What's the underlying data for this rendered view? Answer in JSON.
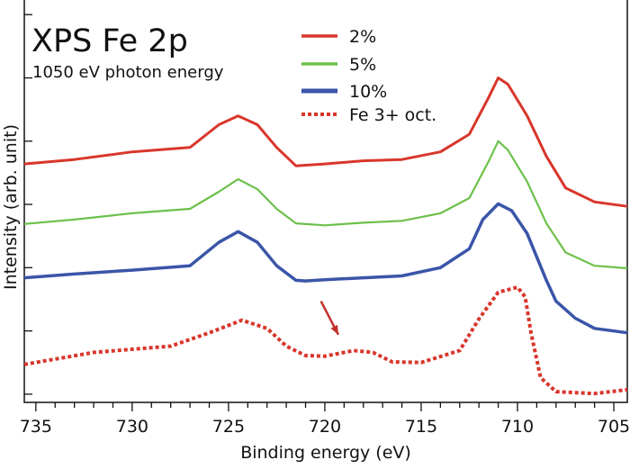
{
  "chart_data": {
    "type": "line",
    "title": "XPS Fe 2p",
    "subtitle": "1050 eV photon energy",
    "xlabel": "Binding energy (eV)",
    "ylabel": "Intensity (arb. unit)",
    "xlim": [
      735.6,
      704.3
    ],
    "x_reversed": true,
    "ylim": [
      -0.13,
      6.26
    ],
    "x_ticks": [
      735,
      730,
      725,
      720,
      715,
      710,
      705
    ],
    "x_tick_labels": [
      "735",
      "730",
      "725",
      "720",
      "715",
      "710",
      "705"
    ],
    "y_ticks": [
      0,
      1,
      2,
      3,
      4,
      5,
      6
    ],
    "y_tick_labels_shown": false,
    "grid": false,
    "legend_placement": "top-center",
    "series": [
      {
        "name": "2%",
        "color": "#d9362b",
        "style": "solid",
        "x": [
          735.6,
          733,
          730,
          727,
          725.5,
          724.5,
          723.5,
          722.5,
          721.5,
          720,
          718,
          716,
          714,
          712.5,
          711.5,
          711,
          710.5,
          709.5,
          708.5,
          707.5,
          706,
          704.3
        ],
        "y": [
          3.64,
          3.71,
          3.83,
          3.9,
          4.26,
          4.4,
          4.26,
          3.9,
          3.61,
          3.64,
          3.69,
          3.71,
          3.83,
          4.11,
          4.69,
          5.0,
          4.9,
          4.4,
          3.76,
          3.26,
          3.04,
          2.97
        ]
      },
      {
        "name": "5%",
        "color": "#6cc04a",
        "style": "solid",
        "x": [
          735.6,
          733,
          730,
          727,
          725.5,
          724.5,
          723.5,
          722.5,
          721.5,
          720,
          718,
          716,
          714,
          712.5,
          711.5,
          711,
          710.5,
          709.5,
          708.5,
          707.5,
          706,
          704.3
        ],
        "y": [
          2.69,
          2.76,
          2.86,
          2.93,
          3.2,
          3.4,
          3.24,
          2.93,
          2.7,
          2.67,
          2.71,
          2.74,
          2.86,
          3.1,
          3.68,
          4.0,
          3.86,
          3.36,
          2.7,
          2.24,
          2.03,
          1.99
        ]
      },
      {
        "name": "10%",
        "color": "#3a55a8",
        "style": "solid",
        "x": [
          735.6,
          733,
          730,
          727,
          725.5,
          724.5,
          723.5,
          722.5,
          721.5,
          721,
          720,
          718,
          716,
          714,
          712.5,
          711.8,
          711,
          710.3,
          709.5,
          708.5,
          708,
          707,
          706,
          704.3
        ],
        "y": [
          1.84,
          1.9,
          1.96,
          2.03,
          2.4,
          2.57,
          2.4,
          2.03,
          1.8,
          1.79,
          1.81,
          1.84,
          1.87,
          2.0,
          2.3,
          2.76,
          3.01,
          2.9,
          2.54,
          1.8,
          1.47,
          1.2,
          1.04,
          0.97
        ]
      },
      {
        "name": "Fe 3+ oct.",
        "color": "#d9362b",
        "style": "dotted",
        "x": [
          735.6,
          732,
          728,
          726,
          724.3,
          723,
          722,
          721,
          720,
          718.5,
          717.5,
          716.5,
          715,
          713,
          712,
          711,
          710,
          709.6,
          709.3,
          708.8,
          708,
          706,
          704.3
        ],
        "y": [
          0.47,
          0.66,
          0.76,
          0.97,
          1.17,
          1.04,
          0.76,
          0.61,
          0.6,
          0.69,
          0.66,
          0.51,
          0.5,
          0.69,
          1.19,
          1.61,
          1.69,
          1.54,
          0.97,
          0.26,
          0.04,
          0.01,
          0.07
        ]
      }
    ],
    "annotations": [
      {
        "type": "arrow",
        "color": "#c0302a",
        "from": [
          720.2,
          1.47
        ],
        "to": [
          719.3,
          0.94
        ]
      }
    ]
  }
}
